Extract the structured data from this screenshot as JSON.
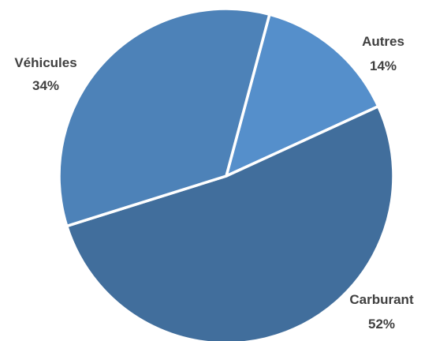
{
  "chart_data": {
    "type": "pie",
    "title": "",
    "slices": [
      {
        "label": "Autres",
        "value": 14,
        "value_label": "14%",
        "color": "#558fcb"
      },
      {
        "label": "Carburant",
        "value": 52,
        "value_label": "52%",
        "color": "#416e9c"
      },
      {
        "label": "Véhicules",
        "value": 34,
        "value_label": "34%",
        "color": "#4d82b8"
      }
    ],
    "start_angle_deg": 15,
    "direction": "clockwise",
    "legend": "none",
    "data_labels": "outside, category name and percentage"
  }
}
